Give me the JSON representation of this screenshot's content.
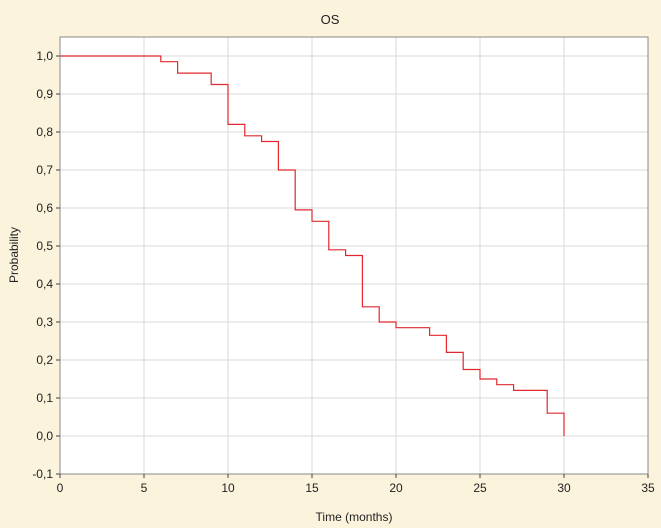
{
  "chart_data": {
    "type": "line",
    "title": "OS",
    "xlabel": "Time (months)",
    "ylabel": "Probability",
    "xlim": [
      0,
      35
    ],
    "ylim": [
      -0.1,
      1.05
    ],
    "x_ticks": [
      0,
      5,
      10,
      15,
      20,
      25,
      30,
      35
    ],
    "x_tick_labels": [
      "0",
      "5",
      "10",
      "15",
      "20",
      "25",
      "30",
      "35"
    ],
    "y_ticks": [
      -0.1,
      0.0,
      0.1,
      0.2,
      0.3,
      0.4,
      0.5,
      0.6,
      0.7,
      0.8,
      0.9,
      1.0
    ],
    "y_tick_labels": [
      "-0,1",
      "0,0",
      "0,1",
      "0,2",
      "0,3",
      "0,4",
      "0,5",
      "0,6",
      "0,7",
      "0,8",
      "0,9",
      "1,0"
    ],
    "grid": true,
    "colors": {
      "background": "#fcf3dd",
      "plot_bg": "#ffffff",
      "line": "#e0282e",
      "grid": "#d9d9d9",
      "frame": "#888888"
    },
    "series": [
      {
        "step": "post",
        "x": [
          0,
          6,
          7,
          9,
          10,
          11,
          12,
          13,
          14,
          15,
          16,
          17,
          18,
          19,
          20,
          22,
          23,
          24,
          25,
          26,
          27,
          29,
          30,
          30
        ],
        "y": [
          1.0,
          0.985,
          0.955,
          0.925,
          0.82,
          0.79,
          0.775,
          0.7,
          0.595,
          0.565,
          0.49,
          0.475,
          0.34,
          0.3,
          0.285,
          0.265,
          0.22,
          0.175,
          0.15,
          0.135,
          0.12,
          0.06,
          0.0,
          0.0
        ]
      }
    ]
  }
}
